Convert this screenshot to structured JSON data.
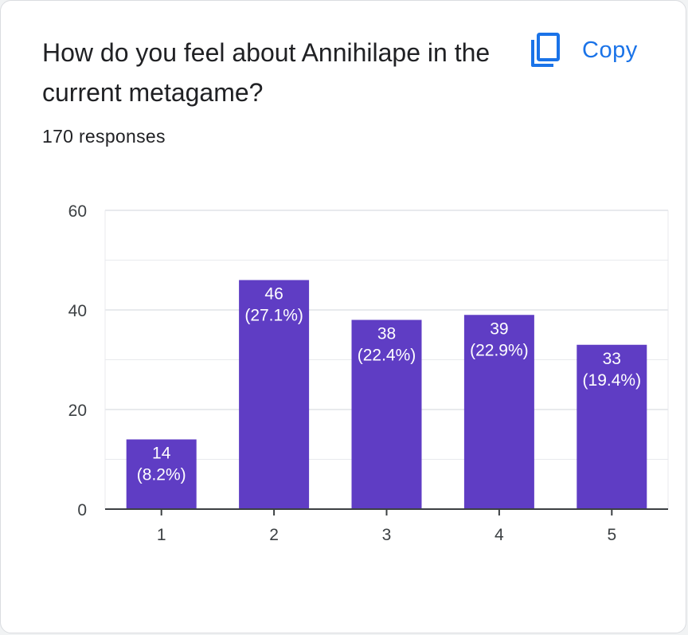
{
  "question": {
    "title": "How do you feel about Annihilape in the current metagame?",
    "responses_label": "170 responses"
  },
  "copy": {
    "label": "Copy",
    "icon": "copy-icon"
  },
  "colors": {
    "bar": "#5f3dc4",
    "bar_label": "#ffffff",
    "accent": "#1a73e8",
    "gridline": "#e8eaed",
    "axis": "#3c4043",
    "tick_text": "#3c4043"
  },
  "chart_data": {
    "type": "bar",
    "categories": [
      "1",
      "2",
      "3",
      "4",
      "5"
    ],
    "values": [
      14,
      46,
      38,
      39,
      33
    ],
    "data_labels": [
      [
        "14",
        "(8.2%)"
      ],
      [
        "46",
        "(27.1%)"
      ],
      [
        "38",
        "(22.4%)"
      ],
      [
        "39",
        "(22.9%)"
      ],
      [
        "33",
        "(19.4%)"
      ]
    ],
    "ylim": [
      0,
      60
    ],
    "yticks": [
      0,
      20,
      40,
      60
    ],
    "grid": true,
    "legend": "none",
    "title": "",
    "xlabel": "",
    "ylabel": ""
  }
}
